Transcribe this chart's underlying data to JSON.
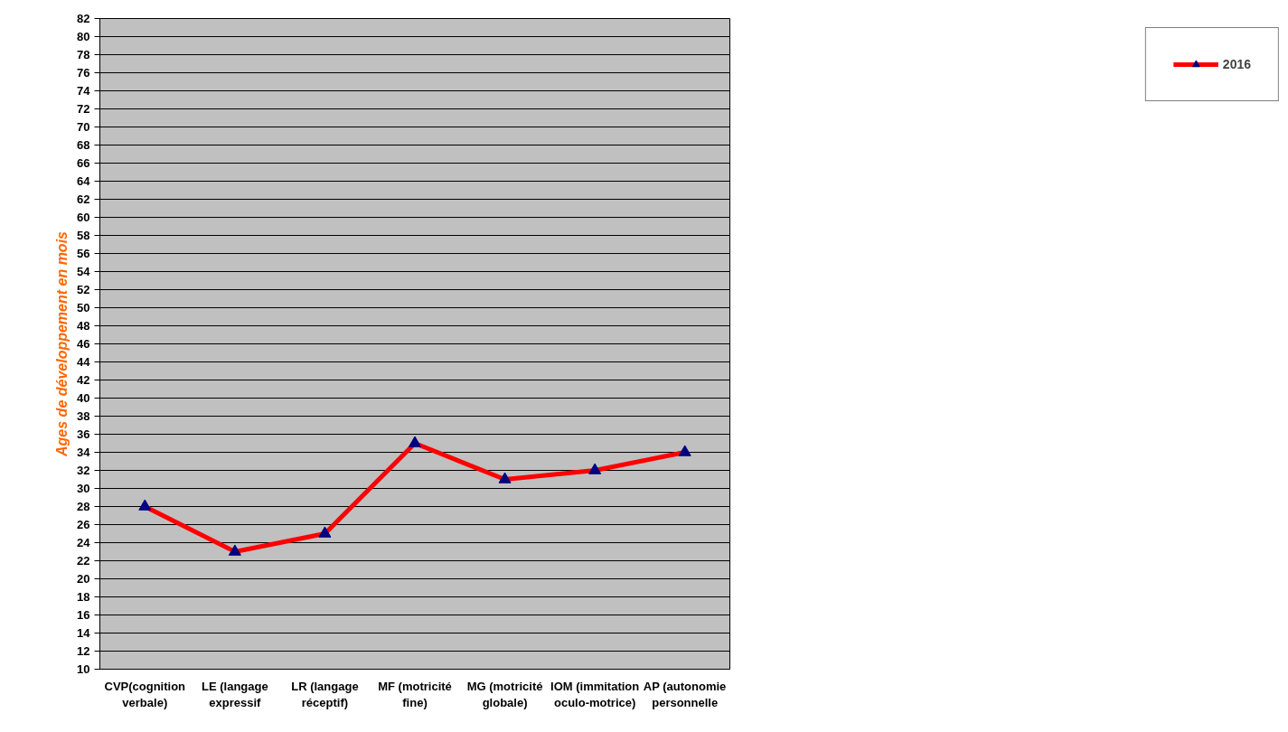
{
  "chart_data": {
    "type": "line",
    "ylabel": "Ages de développement en mois",
    "categories": [
      "CVP(cognition verbale)",
      "LE (langage expressif",
      "LR (langage réceptif)",
      "MF (motricité fine)",
      "MG (motricité globale)",
      "IOM (immitation oculo-motrice)",
      "AP (autonomie personnelle"
    ],
    "series": [
      {
        "name": "2016",
        "color": "#ff0000",
        "values": [
          28,
          23,
          25,
          35,
          31,
          32,
          34
        ]
      }
    ],
    "ylim": [
      10,
      82
    ],
    "yticks": [
      10,
      12,
      14,
      16,
      18,
      20,
      22,
      24,
      26,
      28,
      30,
      32,
      34,
      36,
      38,
      40,
      42,
      44,
      46,
      48,
      50,
      52,
      54,
      56,
      58,
      60,
      62,
      64,
      66,
      68,
      70,
      72,
      74,
      76,
      78,
      80,
      82
    ],
    "grid": "y",
    "legend": "right",
    "marker": "triangle",
    "line_style": "solid"
  }
}
